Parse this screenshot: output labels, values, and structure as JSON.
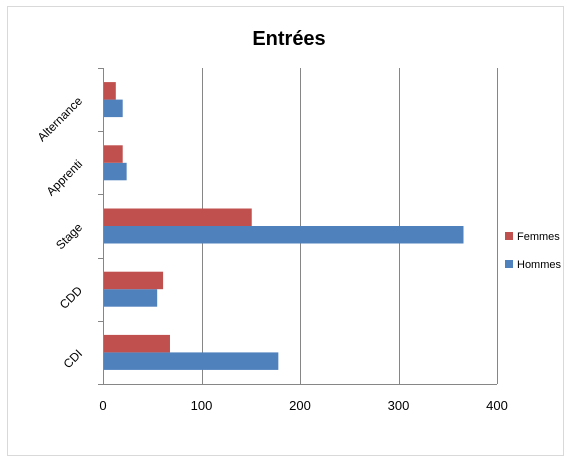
{
  "chart_data": {
    "type": "bar",
    "orientation": "horizontal",
    "title": "Entrées",
    "xlabel": "",
    "ylabel": "",
    "categories": [
      "CDI",
      "CDD",
      "Stage",
      "Apprenti",
      "Alternance"
    ],
    "series": [
      {
        "name": "Hommes",
        "color": "#4f81bd",
        "values": [
          178,
          55,
          366,
          24,
          20
        ]
      },
      {
        "name": "Femmes",
        "color": "#c0504d",
        "values": [
          68,
          61,
          151,
          20,
          13
        ]
      }
    ],
    "xlim": [
      0,
      400
    ],
    "xticks": [
      "0",
      "100",
      "200",
      "300",
      "400"
    ],
    "grid": true,
    "legend": "right"
  }
}
